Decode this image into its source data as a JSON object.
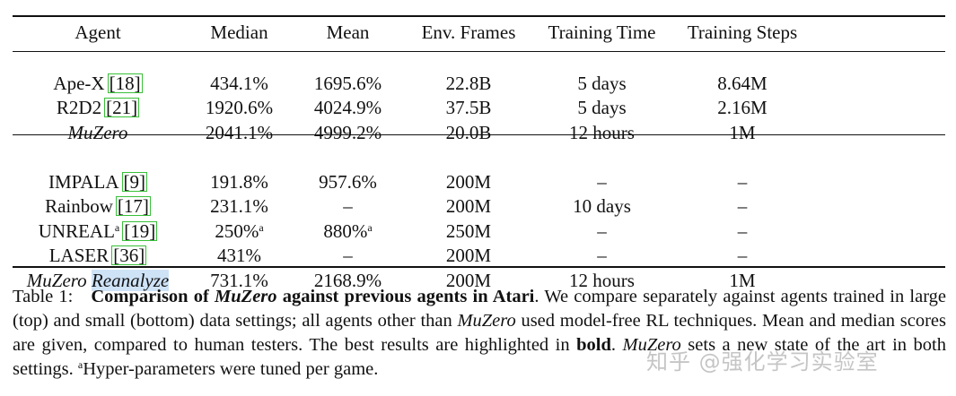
{
  "table": {
    "headers": [
      "Agent",
      "Median",
      "Mean",
      "Env. Frames",
      "Training Time",
      "Training Steps"
    ],
    "groups": [
      [
        {
          "agent": "Ape-X",
          "ref": "18",
          "median": "434.1%",
          "mean": "1695.6%",
          "frames": "22.8B",
          "time": "5 days",
          "steps": "8.64M"
        },
        {
          "agent": "R2D2",
          "ref": "21",
          "median": "1920.6%",
          "mean": "4024.9%",
          "frames": "37.5B",
          "time": "5 days",
          "steps": "2.16M"
        },
        {
          "agent": "MuZero",
          "median": "2041.1%",
          "mean": "4999.2%",
          "frames": "20.0B",
          "time": "12 hours",
          "steps": "1M"
        }
      ],
      [
        {
          "agent": "IMPALA",
          "ref": "9",
          "median": "191.8%",
          "mean": "957.6%",
          "frames": "200M",
          "time": "–",
          "steps": "–"
        },
        {
          "agent": "Rainbow",
          "ref": "17",
          "median": "231.1%",
          "mean": "–",
          "frames": "200M",
          "time": "10 days",
          "steps": "–"
        },
        {
          "agent": "UNREAL",
          "sup": "a",
          "ref": "19",
          "median": "250%",
          "median_sup": "a",
          "mean": "880%",
          "mean_sup": "a",
          "frames": "250M",
          "time": "–",
          "steps": "–"
        },
        {
          "agent": "LASER",
          "ref": "36",
          "median": "431%",
          "mean": "–",
          "frames": "200M",
          "time": "–",
          "steps": "–"
        },
        {
          "agent": "MuZero",
          "agent_suffix": "Reanalyze",
          "median": "731.1%",
          "mean": "2168.9%",
          "frames": "200M",
          "time": "12 hours",
          "steps": "1M"
        }
      ]
    ]
  },
  "caption": {
    "label": "Table 1:",
    "title_pre": "Comparison of ",
    "title_it": "MuZero",
    "title_post": " against previous agents in Atari",
    "s1": ". We compare separately against agents trained in large (top) and small (bottom) data settings; all agents other than ",
    "s1_it": "MuZero",
    "s2": " used model-free RL techniques. Mean and median scores are given, compared to human testers. The best results are highlighted in ",
    "s2_bold": "bold",
    "s3": ". ",
    "s3_it": "MuZero",
    "s4": " sets a new state of the art in both settings. ",
    "footnote_mark": "a",
    "s5": "Hyper-parameters were tuned per game."
  },
  "watermark": "知乎 @强化学习实验室"
}
